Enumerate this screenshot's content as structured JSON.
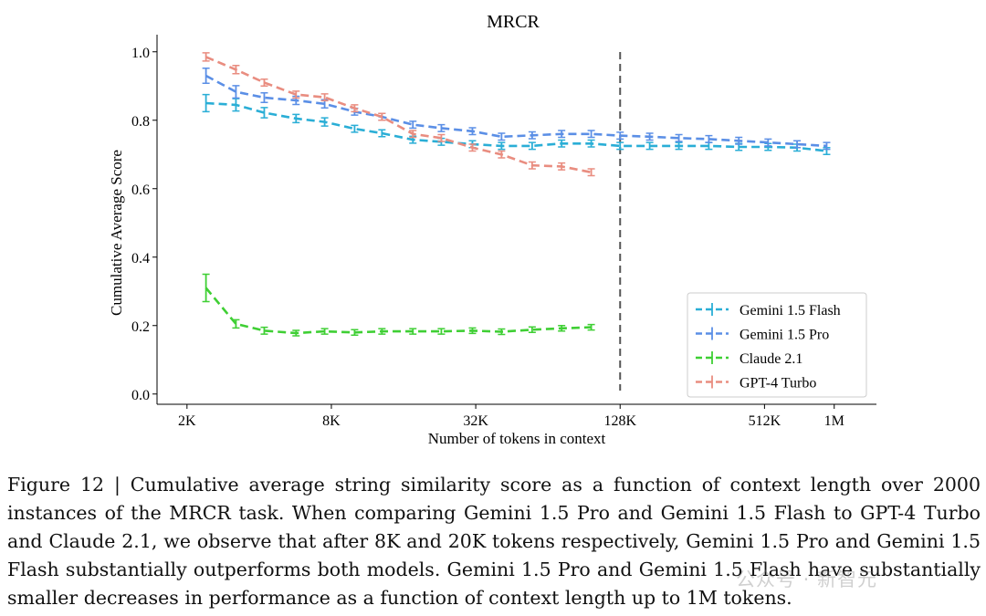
{
  "chart_data": {
    "type": "line",
    "title": "MRCR",
    "xlabel": "Number of tokens in context",
    "ylabel": "Cumulative Average Score",
    "x_scale": "log2",
    "xlim": [
      1500,
      1500000
    ],
    "ylim": [
      -0.03,
      1.05
    ],
    "x_ticks": [
      {
        "value": 2000,
        "label": "2K"
      },
      {
        "value": 8000,
        "label": "8K"
      },
      {
        "value": 32000,
        "label": "32K"
      },
      {
        "value": 128000,
        "label": "128K"
      },
      {
        "value": 512000,
        "label": "512K"
      },
      {
        "value": 1000000,
        "label": "1M"
      }
    ],
    "y_ticks": [
      {
        "value": 0.0,
        "label": "0.0"
      },
      {
        "value": 0.2,
        "label": "0.2"
      },
      {
        "value": 0.4,
        "label": "0.4"
      },
      {
        "value": 0.6,
        "label": "0.6"
      },
      {
        "value": 0.8,
        "label": "0.8"
      },
      {
        "value": 1.0,
        "label": "1.0"
      }
    ],
    "vline_x": 128000,
    "legend_position": "lower-right",
    "series": [
      {
        "name": "Gemini 1.5 Flash",
        "color": "#2aaed6",
        "x": [
          2400,
          3200,
          4200,
          5700,
          7500,
          10000,
          13000,
          17500,
          23000,
          31000,
          41000,
          55000,
          73000,
          97000,
          128000,
          170000,
          225000,
          300000,
          400000,
          530000,
          700000,
          930000
        ],
        "y": [
          0.85,
          0.845,
          0.822,
          0.805,
          0.795,
          0.775,
          0.762,
          0.743,
          0.737,
          0.73,
          0.725,
          0.725,
          0.732,
          0.732,
          0.725,
          0.725,
          0.725,
          0.725,
          0.722,
          0.722,
          0.72,
          0.71
        ],
        "err": [
          0.025,
          0.018,
          0.015,
          0.012,
          0.012,
          0.01,
          0.01,
          0.01,
          0.01,
          0.01,
          0.01,
          0.01,
          0.01,
          0.01,
          0.01,
          0.01,
          0.01,
          0.01,
          0.01,
          0.01,
          0.01,
          0.01
        ]
      },
      {
        "name": "Gemini 1.5 Pro",
        "color": "#5b8fe6",
        "x": [
          2400,
          3200,
          4200,
          5700,
          7500,
          10000,
          13000,
          17500,
          23000,
          31000,
          41000,
          55000,
          73000,
          97000,
          128000,
          170000,
          225000,
          300000,
          400000,
          530000,
          700000,
          930000
        ],
        "y": [
          0.93,
          0.883,
          0.866,
          0.858,
          0.848,
          0.825,
          0.81,
          0.787,
          0.777,
          0.768,
          0.752,
          0.756,
          0.76,
          0.76,
          0.755,
          0.752,
          0.748,
          0.745,
          0.74,
          0.735,
          0.73,
          0.725
        ],
        "err": [
          0.022,
          0.018,
          0.014,
          0.012,
          0.012,
          0.01,
          0.01,
          0.01,
          0.01,
          0.01,
          0.01,
          0.01,
          0.01,
          0.01,
          0.01,
          0.01,
          0.01,
          0.01,
          0.01,
          0.01,
          0.01,
          0.01
        ]
      },
      {
        "name": "Claude 2.1",
        "color": "#3fcf34",
        "x": [
          2400,
          3200,
          4200,
          5700,
          7500,
          10000,
          13000,
          17500,
          23000,
          31000,
          41000,
          55000,
          73000,
          97000
        ],
        "y": [
          0.31,
          0.205,
          0.185,
          0.178,
          0.183,
          0.18,
          0.183,
          0.183,
          0.183,
          0.185,
          0.182,
          0.188,
          0.192,
          0.195
        ],
        "err": [
          0.04,
          0.012,
          0.01,
          0.008,
          0.008,
          0.008,
          0.008,
          0.008,
          0.008,
          0.008,
          0.008,
          0.008,
          0.008,
          0.008
        ]
      },
      {
        "name": "GPT-4 Turbo",
        "color": "#e98d80",
        "x": [
          2400,
          3200,
          4200,
          5700,
          7500,
          10000,
          13000,
          17500,
          23000,
          31000,
          41000,
          55000,
          73000,
          97000
        ],
        "y": [
          0.985,
          0.948,
          0.91,
          0.875,
          0.867,
          0.835,
          0.81,
          0.76,
          0.748,
          0.72,
          0.7,
          0.668,
          0.665,
          0.648
        ],
        "err": [
          0.012,
          0.012,
          0.01,
          0.01,
          0.01,
          0.01,
          0.01,
          0.01,
          0.01,
          0.01,
          0.01,
          0.01,
          0.01,
          0.01
        ]
      }
    ]
  },
  "caption": "Figure 12 | Cumulative average string similarity score as a function of context length over 2000 instances of the MRCR task. When comparing Gemini 1.5 Pro and Gemini 1.5 Flash to GPT-4 Turbo and Claude 2.1, we observe that after 8K and 20K tokens respectively, Gemini 1.5 Pro and Gemini 1.5 Flash substantially outperforms both models. Gemini 1.5 Pro and Gemini 1.5 Flash have substantially smaller decreases in performance as a function of context length up to 1M tokens.",
  "watermark": "公众号 · 新智元"
}
